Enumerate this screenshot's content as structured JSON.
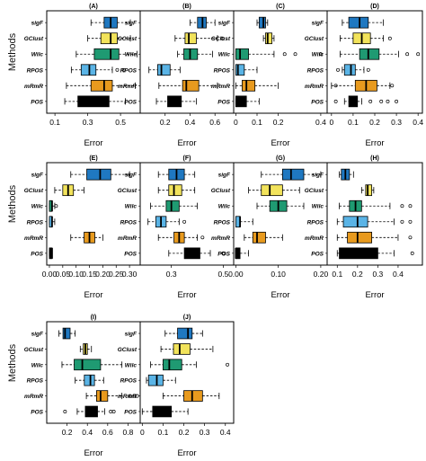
{
  "figure": {
    "y_axis_label": "Methods"
  },
  "chart_data": [
    {
      "type": "boxplot",
      "title": "(A)",
      "xlabel": "Error",
      "xlim": [
        0.05,
        0.62
      ],
      "ticks": [
        0.1,
        0.3,
        0.5
      ],
      "methods": [
        "sigF",
        "GClust",
        "Wilc",
        "RPOS",
        "mRmR",
        "POS"
      ],
      "boxes": [
        {
          "min": 0.32,
          "q1": 0.4,
          "median": 0.44,
          "q3": 0.48,
          "max": 0.56,
          "outliers": []
        },
        {
          "min": 0.3,
          "q1": 0.38,
          "median": 0.44,
          "q3": 0.48,
          "max": 0.56,
          "outliers": []
        },
        {
          "min": 0.23,
          "q1": 0.34,
          "median": 0.44,
          "q3": 0.49,
          "max": 0.6,
          "outliers": []
        },
        {
          "min": 0.2,
          "q1": 0.26,
          "median": 0.31,
          "q3": 0.35,
          "max": 0.45,
          "outliers": [
            0.48,
            0.52
          ]
        },
        {
          "min": 0.17,
          "q1": 0.32,
          "median": 0.4,
          "q3": 0.45,
          "max": 0.59,
          "outliers": []
        },
        {
          "min": 0.16,
          "q1": 0.24,
          "median": 0.36,
          "q3": 0.43,
          "max": 0.53,
          "outliers": []
        }
      ]
    },
    {
      "type": "boxplot",
      "title": "(B)",
      "xlabel": "Error",
      "xlim": [
        0.0,
        0.75
      ],
      "ticks": [
        0.2,
        0.4,
        0.6
      ],
      "methods": [
        "sigF",
        "GClust",
        "Wilc",
        "RPOS",
        "mRmR",
        "POS"
      ],
      "boxes": [
        {
          "min": 0.4,
          "q1": 0.46,
          "median": 0.5,
          "q3": 0.53,
          "max": 0.6,
          "outliers": []
        },
        {
          "min": 0.28,
          "q1": 0.36,
          "median": 0.39,
          "q3": 0.45,
          "max": 0.62,
          "outliers": [
            0.66
          ]
        },
        {
          "min": 0.3,
          "q1": 0.35,
          "median": 0.4,
          "q3": 0.46,
          "max": 0.58,
          "outliers": []
        },
        {
          "min": 0.07,
          "q1": 0.14,
          "median": 0.17,
          "q3": 0.24,
          "max": 0.32,
          "outliers": []
        },
        {
          "min": 0.15,
          "q1": 0.34,
          "median": 0.37,
          "q3": 0.47,
          "max": 0.62,
          "outliers": []
        },
        {
          "min": 0.13,
          "q1": 0.22,
          "median": 0.29,
          "q3": 0.33,
          "max": 0.45,
          "outliers": []
        }
      ]
    },
    {
      "type": "boxplot",
      "title": "(C)",
      "xlabel": "Error",
      "xlim": [
        -0.01,
        0.43
      ],
      "ticks": [
        0.0,
        0.1,
        0.2,
        0.4
      ],
      "methods": [
        "sigF",
        "GClust",
        "Wilc",
        "RPOS",
        "mRmR",
        "POS"
      ],
      "boxes": [
        {
          "min": 0.1,
          "q1": 0.11,
          "median": 0.13,
          "q3": 0.14,
          "max": 0.15,
          "outliers": []
        },
        {
          "min": 0.13,
          "q1": 0.14,
          "median": 0.15,
          "q3": 0.17,
          "max": 0.18,
          "outliers": []
        },
        {
          "min": 0.0,
          "q1": 0.0,
          "median": 0.02,
          "q3": 0.06,
          "max": 0.18,
          "outliers": [
            0.23,
            0.28,
            0.4
          ]
        },
        {
          "min": 0.0,
          "q1": 0.0,
          "median": 0.01,
          "q3": 0.04,
          "max": 0.1,
          "outliers": []
        },
        {
          "min": 0.0,
          "q1": 0.03,
          "median": 0.05,
          "q3": 0.09,
          "max": 0.2,
          "outliers": []
        },
        {
          "min": 0.0,
          "q1": 0.0,
          "median": 0.02,
          "q3": 0.05,
          "max": 0.11,
          "outliers": []
        }
      ]
    },
    {
      "type": "boxplot",
      "title": "(D)",
      "xlabel": "Error",
      "xlim": [
        -0.02,
        0.42
      ],
      "ticks": [
        0.0,
        0.1,
        0.2,
        0.3,
        0.4
      ],
      "methods": [
        "sigF",
        "GClust",
        "Wilc",
        "RPOS",
        "mRmR",
        "POS"
      ],
      "boxes": [
        {
          "min": 0.05,
          "q1": 0.08,
          "median": 0.13,
          "q3": 0.17,
          "max": 0.24,
          "outliers": []
        },
        {
          "min": 0.04,
          "q1": 0.1,
          "median": 0.14,
          "q3": 0.18,
          "max": 0.24,
          "outliers": [
            0.27
          ]
        },
        {
          "min": 0.04,
          "q1": 0.13,
          "median": 0.17,
          "q3": 0.22,
          "max": 0.31,
          "outliers": [
            0.35,
            0.4
          ]
        },
        {
          "min": 0.05,
          "q1": 0.06,
          "median": 0.09,
          "q3": 0.11,
          "max": 0.15,
          "outliers": [
            0.03,
            0.17
          ]
        },
        {
          "min": 0.0,
          "q1": 0.11,
          "median": 0.16,
          "q3": 0.21,
          "max": 0.27,
          "outliers": [
            0.02,
            0.28
          ]
        },
        {
          "min": 0.06,
          "q1": 0.08,
          "median": 0.1,
          "q3": 0.12,
          "max": 0.14,
          "outliers": [
            0.02,
            0.18,
            0.23,
            0.26,
            0.3
          ]
        }
      ]
    },
    {
      "type": "boxplot",
      "title": "(E)",
      "xlabel": "Error",
      "xlim": [
        -0.01,
        0.34
      ],
      "ticks": [
        0.0,
        0.05,
        0.1,
        0.15,
        0.2,
        0.25,
        0.3
      ],
      "tick_labels": [
        "0.00",
        "0.05",
        "0.10",
        "0.15",
        "0.20",
        "0.25",
        "0.30"
      ],
      "methods": [
        "sigF",
        "GClust",
        "Wilc",
        "RPOS",
        "mRmR",
        "POS"
      ],
      "boxes": [
        {
          "min": 0.08,
          "q1": 0.14,
          "median": 0.19,
          "q3": 0.23,
          "max": 0.3,
          "outliers": []
        },
        {
          "min": 0.02,
          "q1": 0.05,
          "median": 0.07,
          "q3": 0.09,
          "max": 0.13,
          "outliers": []
        },
        {
          "min": 0.0,
          "q1": 0.0,
          "median": 0.01,
          "q3": 0.01,
          "max": 0.02,
          "outliers": [
            0.025
          ]
        },
        {
          "min": 0.0,
          "q1": 0.0,
          "median": 0.01,
          "q3": 0.01,
          "max": 0.02,
          "outliers": []
        },
        {
          "min": 0.08,
          "q1": 0.13,
          "median": 0.15,
          "q3": 0.17,
          "max": 0.2,
          "outliers": []
        },
        {
          "min": 0.0,
          "q1": 0.0,
          "median": 0.01,
          "q3": 0.01,
          "max": 0.01,
          "outliers": []
        }
      ]
    },
    {
      "type": "boxplot",
      "title": "(F)",
      "xlabel": "Error",
      "xlim": [
        0.18,
        0.54
      ],
      "ticks": [
        0.3,
        0.5
      ],
      "methods": [
        "sigF",
        "GClust",
        "Wilc",
        "RPOS",
        "mRmR",
        "POS"
      ],
      "boxes": [
        {
          "min": 0.25,
          "q1": 0.29,
          "median": 0.32,
          "q3": 0.35,
          "max": 0.39,
          "outliers": []
        },
        {
          "min": 0.25,
          "q1": 0.29,
          "median": 0.31,
          "q3": 0.34,
          "max": 0.39,
          "outliers": []
        },
        {
          "min": 0.22,
          "q1": 0.28,
          "median": 0.3,
          "q3": 0.33,
          "max": 0.4,
          "outliers": []
        },
        {
          "min": 0.21,
          "q1": 0.24,
          "median": 0.26,
          "q3": 0.28,
          "max": 0.33,
          "outliers": [
            0.35
          ]
        },
        {
          "min": 0.25,
          "q1": 0.31,
          "median": 0.33,
          "q3": 0.35,
          "max": 0.4,
          "outliers": [
            0.42
          ]
        },
        {
          "min": 0.29,
          "q1": 0.35,
          "median": 0.38,
          "q3": 0.41,
          "max": 0.45,
          "outliers": [
            0.5
          ]
        }
      ]
    },
    {
      "type": "boxplot",
      "title": "(G)",
      "xlabel": "Error",
      "xlim": [
        -0.005,
        0.215
      ],
      "ticks": [
        0.0,
        0.1,
        0.2
      ],
      "tick_labels": [
        "0.00",
        "0.10",
        "0.20"
      ],
      "methods": [
        "sigF",
        "GClust",
        "Wilc",
        "RPOS",
        "mRmR",
        "POS"
      ],
      "boxes": [
        {
          "min": 0.06,
          "q1": 0.11,
          "median": 0.13,
          "q3": 0.16,
          "max": 0.2,
          "outliers": []
        },
        {
          "min": 0.03,
          "q1": 0.06,
          "median": 0.08,
          "q3": 0.11,
          "max": 0.15,
          "outliers": []
        },
        {
          "min": 0.05,
          "q1": 0.08,
          "median": 0.1,
          "q3": 0.12,
          "max": 0.16,
          "outliers": []
        },
        {
          "min": 0.0,
          "q1": 0.0,
          "median": 0.01,
          "q3": 0.01,
          "max": 0.04,
          "outliers": []
        },
        {
          "min": 0.02,
          "q1": 0.04,
          "median": 0.05,
          "q3": 0.07,
          "max": 0.11,
          "outliers": []
        },
        {
          "min": 0.0,
          "q1": 0.0,
          "median": 0.0,
          "q3": 0.01,
          "max": 0.03,
          "outliers": []
        }
      ]
    },
    {
      "type": "boxplot",
      "title": "(H)",
      "xlabel": "Error",
      "xlim": [
        0.05,
        0.52
      ],
      "ticks": [
        0.1,
        0.2,
        0.3,
        0.4
      ],
      "methods": [
        "sigF",
        "GClust",
        "Wilc",
        "RPOS",
        "mRmR",
        "POS"
      ],
      "boxes": [
        {
          "min": 0.11,
          "q1": 0.12,
          "median": 0.14,
          "q3": 0.16,
          "max": 0.18,
          "outliers": []
        },
        {
          "min": 0.22,
          "q1": 0.24,
          "median": 0.25,
          "q3": 0.27,
          "max": 0.28,
          "outliers": []
        },
        {
          "min": 0.11,
          "q1": 0.16,
          "median": 0.19,
          "q3": 0.22,
          "max": 0.36,
          "outliers": [
            0.42,
            0.46
          ]
        },
        {
          "min": 0.1,
          "q1": 0.13,
          "median": 0.2,
          "q3": 0.25,
          "max": 0.38,
          "outliers": [
            0.42,
            0.46
          ]
        },
        {
          "min": 0.1,
          "q1": 0.15,
          "median": 0.2,
          "q3": 0.27,
          "max": 0.4,
          "outliers": [
            0.46
          ]
        },
        {
          "min": 0.1,
          "q1": 0.11,
          "median": 0.2,
          "q3": 0.3,
          "max": 0.38,
          "outliers": [
            0.47
          ]
        }
      ]
    },
    {
      "type": "boxplot",
      "title": "(I)",
      "xlabel": "Error",
      "xlim": [
        0.0,
        0.92
      ],
      "ticks": [
        0.2,
        0.4,
        0.6,
        0.8
      ],
      "methods": [
        "sigF",
        "GClust",
        "Wilc",
        "RPOS",
        "mRmR",
        "POS"
      ],
      "boxes": [
        {
          "min": 0.12,
          "q1": 0.16,
          "median": 0.18,
          "q3": 0.23,
          "max": 0.28,
          "outliers": []
        },
        {
          "min": 0.33,
          "q1": 0.36,
          "median": 0.38,
          "q3": 0.4,
          "max": 0.44,
          "outliers": []
        },
        {
          "min": 0.15,
          "q1": 0.27,
          "median": 0.35,
          "q3": 0.53,
          "max": 0.74,
          "outliers": []
        },
        {
          "min": 0.28,
          "q1": 0.37,
          "median": 0.43,
          "q3": 0.47,
          "max": 0.56,
          "outliers": []
        },
        {
          "min": 0.39,
          "q1": 0.49,
          "median": 0.53,
          "q3": 0.6,
          "max": 0.74,
          "outliers": [
            0.82,
            0.86,
            0.89
          ]
        },
        {
          "min": 0.3,
          "q1": 0.38,
          "median": 0.45,
          "q3": 0.5,
          "max": 0.57,
          "outliers": [
            0.18,
            0.63,
            0.66
          ]
        }
      ]
    },
    {
      "type": "boxplot",
      "title": "(J)",
      "xlabel": "Error",
      "xlim": [
        -0.01,
        0.44
      ],
      "ticks": [
        0.0,
        0.1,
        0.2,
        0.3,
        0.4
      ],
      "methods": [
        "sigF",
        "GClust",
        "Wilc",
        "RPOS",
        "mRmR",
        "POS"
      ],
      "boxes": [
        {
          "min": 0.11,
          "q1": 0.17,
          "median": 0.22,
          "q3": 0.24,
          "max": 0.29,
          "outliers": []
        },
        {
          "min": 0.09,
          "q1": 0.15,
          "median": 0.18,
          "q3": 0.23,
          "max": 0.34,
          "outliers": []
        },
        {
          "min": 0.04,
          "q1": 0.1,
          "median": 0.13,
          "q3": 0.19,
          "max": 0.26,
          "outliers": [
            0.41
          ]
        },
        {
          "min": 0.02,
          "q1": 0.03,
          "median": 0.07,
          "q3": 0.1,
          "max": 0.16,
          "outliers": []
        },
        {
          "min": 0.1,
          "q1": 0.2,
          "median": 0.24,
          "q3": 0.29,
          "max": 0.37,
          "outliers": []
        },
        {
          "min": 0.0,
          "q1": 0.05,
          "median": 0.07,
          "q3": 0.14,
          "max": 0.22,
          "outliers": []
        }
      ]
    }
  ],
  "colors": {
    "sigF": "#1f78c1",
    "GClust": "#f2e35b",
    "Wilc": "#1f9a72",
    "RPOS": "#5ab4e6",
    "mRmR": "#e89a1e",
    "POS": "#000000"
  }
}
